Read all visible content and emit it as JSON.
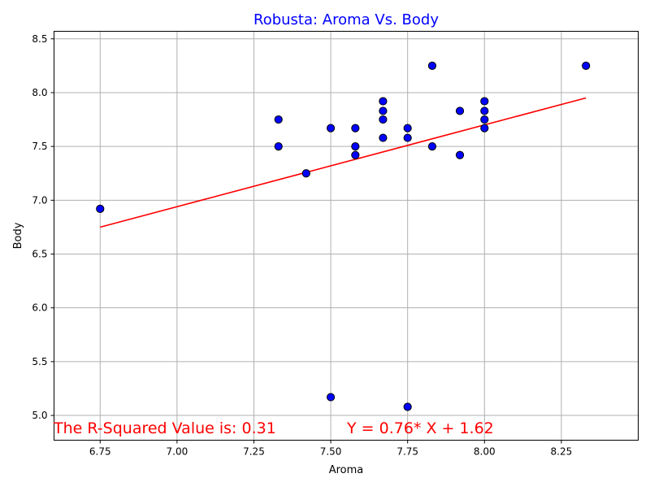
{
  "chart_data": {
    "type": "scatter",
    "title": "Robusta: Aroma Vs. Body",
    "xlabel": "Aroma",
    "ylabel": "Body",
    "xlim": [
      6.6,
      8.5
    ],
    "ylim": [
      4.77,
      8.57
    ],
    "xticks": [
      "6.75",
      "7.00",
      "7.25",
      "7.50",
      "7.75",
      "8.00",
      "8.25"
    ],
    "yticks": [
      "5.0",
      "5.5",
      "6.0",
      "6.5",
      "7.0",
      "7.5",
      "8.0",
      "8.5"
    ],
    "grid": true,
    "points": [
      {
        "x": 6.75,
        "y": 6.92
      },
      {
        "x": 7.33,
        "y": 7.75
      },
      {
        "x": 7.33,
        "y": 7.5
      },
      {
        "x": 7.42,
        "y": 7.25
      },
      {
        "x": 7.5,
        "y": 7.67
      },
      {
        "x": 7.5,
        "y": 5.17
      },
      {
        "x": 7.58,
        "y": 7.67
      },
      {
        "x": 7.58,
        "y": 7.5
      },
      {
        "x": 7.58,
        "y": 7.42
      },
      {
        "x": 7.67,
        "y": 7.92
      },
      {
        "x": 7.67,
        "y": 7.83
      },
      {
        "x": 7.67,
        "y": 7.75
      },
      {
        "x": 7.67,
        "y": 7.58
      },
      {
        "x": 7.75,
        "y": 7.67
      },
      {
        "x": 7.75,
        "y": 7.58
      },
      {
        "x": 7.75,
        "y": 5.08
      },
      {
        "x": 7.83,
        "y": 8.25
      },
      {
        "x": 7.83,
        "y": 7.5
      },
      {
        "x": 7.92,
        "y": 7.83
      },
      {
        "x": 7.92,
        "y": 7.42
      },
      {
        "x": 8.0,
        "y": 7.92
      },
      {
        "x": 8.0,
        "y": 7.83
      },
      {
        "x": 8.0,
        "y": 7.75
      },
      {
        "x": 8.0,
        "y": 7.67
      },
      {
        "x": 8.33,
        "y": 8.25
      }
    ],
    "regression_line": {
      "x_start": 6.75,
      "x_end": 8.33,
      "slope": 0.76,
      "intercept": 1.62
    },
    "annotations": {
      "r_squared": "The R-Squared Value is: 0.31",
      "equation": "Y = 0.76* X + 1.62"
    },
    "colors": {
      "title": "#0000ff",
      "point_fill": "#0000ff",
      "point_edge": "#000000",
      "line": "#ff0000",
      "annotation": "#ff0000",
      "grid": "#b0b0b0"
    }
  }
}
